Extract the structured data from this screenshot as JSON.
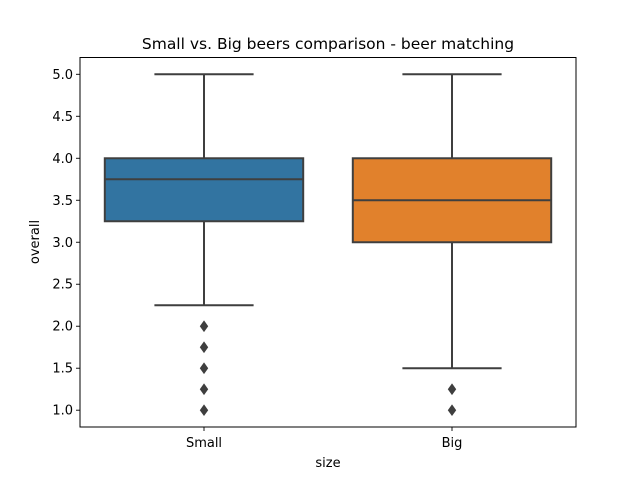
{
  "chart_data": {
    "type": "boxplot",
    "title": "Small vs. Big beers comparison - beer matching",
    "xlabel": "size",
    "ylabel": "overall",
    "ylim": [
      0.8,
      5.2
    ],
    "yticks": [
      "1.0",
      "1.5",
      "2.0",
      "2.5",
      "3.0",
      "3.5",
      "4.0",
      "4.5",
      "5.0"
    ],
    "grid": false,
    "legend": "none",
    "categories": [
      "Small",
      "Big"
    ],
    "boxes": [
      {
        "category": "Small",
        "color": "#3274a1",
        "whisker_low": 2.25,
        "q1": 3.25,
        "median": 3.75,
        "q3": 4.0,
        "whisker_high": 5.0,
        "outliers": [
          2.0,
          1.75,
          1.5,
          1.25,
          1.0
        ]
      },
      {
        "category": "Big",
        "color": "#e1812c",
        "whisker_low": 1.5,
        "q1": 3.0,
        "median": 3.5,
        "q3": 4.0,
        "whisker_high": 5.0,
        "outliers": [
          1.25,
          1.0
        ]
      }
    ]
  }
}
